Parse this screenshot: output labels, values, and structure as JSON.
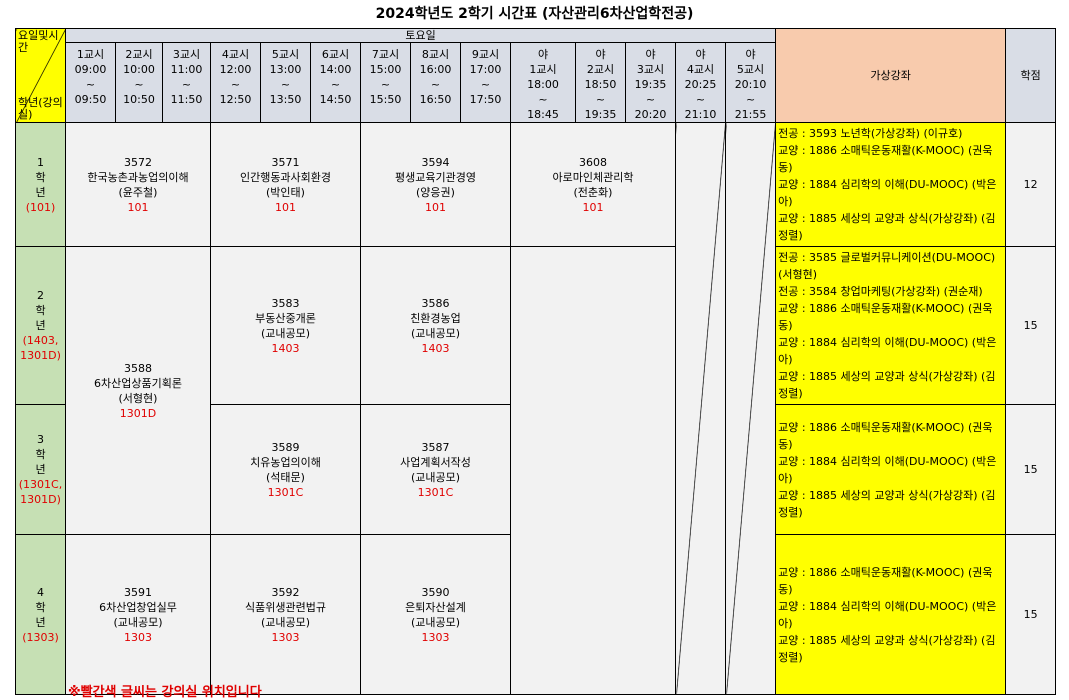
{
  "title": "2024학년도 2학기 시간표 (자산관리6차산업학전공)",
  "header": {
    "corner_top": "요일및시간",
    "corner_bottom": "학년(강의실)",
    "day": "토요일",
    "virtual": "가상강좌",
    "credits": "학점",
    "periods": [
      {
        "label": "1교시",
        "start": "09:00",
        "sep": "~",
        "end": "09:50"
      },
      {
        "label": "2교시",
        "start": "10:00",
        "sep": "~",
        "end": "10:50"
      },
      {
        "label": "3교시",
        "start": "11:00",
        "sep": "~",
        "end": "11:50"
      },
      {
        "label": "4교시",
        "start": "12:00",
        "sep": "~",
        "end": "12:50"
      },
      {
        "label": "5교시",
        "start": "13:00",
        "sep": "~",
        "end": "13:50"
      },
      {
        "label": "6교시",
        "start": "14:00",
        "sep": "~",
        "end": "14:50"
      },
      {
        "label": "7교시",
        "start": "15:00",
        "sep": "~",
        "end": "15:50"
      },
      {
        "label": "8교시",
        "start": "16:00",
        "sep": "~",
        "end": "16:50"
      },
      {
        "label": "9교시",
        "start": "17:00",
        "sep": "~",
        "end": "17:50"
      },
      {
        "prefix": "야",
        "label": "1교시",
        "start": "18:00",
        "sep": "~",
        "end": "18:45"
      },
      {
        "prefix": "야",
        "label": "2교시",
        "start": "18:50",
        "sep": "~",
        "end": "19:35"
      },
      {
        "prefix": "야",
        "label": "3교시",
        "start": "19:35",
        "sep": "~",
        "end": "20:20"
      },
      {
        "prefix": "야",
        "label": "4교시",
        "start": "20:25",
        "sep": "~",
        "end": "21:10"
      },
      {
        "prefix": "야",
        "label": "5교시",
        "start": "20:10",
        "sep": "~",
        "end": "21:55"
      }
    ]
  },
  "rows": [
    {
      "grade": [
        "1",
        "학",
        "년"
      ],
      "room": [
        "(101)"
      ],
      "courses": [
        {
          "code": "3572",
          "name": "한국농촌과농업의이해",
          "professor": "(윤주철)",
          "room": "101"
        },
        {
          "code": "3571",
          "name": "인간행동과사회환경",
          "professor": "(박인태)",
          "room": "101"
        },
        {
          "code": "3594",
          "name": "평생교육기관경영",
          "professor": "(양응권)",
          "room": "101"
        },
        {
          "code": "3608",
          "name": "아로마인체관리학",
          "professor": "(전춘화)",
          "room": "101"
        }
      ],
      "virtual": [
        "전공 : 3593 노년학(가상강좌) (이규호)",
        "교양 : 1886 소매틱운동재활(K-MOOC) (권욱동)",
        "교양 : 1884 심리학의 이해(DU-MOOC) (박은아)",
        "교양 : 1885 세상의 교양과 상식(가상강좌) (김정렬)"
      ],
      "credits": "12"
    },
    {
      "grade": [
        "2",
        "학",
        "년"
      ],
      "room": [
        "(1403,",
        "1301D)"
      ],
      "courses": [
        {
          "code": "3588",
          "name": "6차산업상품기획론",
          "professor": "(서형현)",
          "room": "1301D"
        },
        {
          "code": "3583",
          "name": "부동산중개론",
          "professor": "(교내공모)",
          "room": "1403"
        },
        {
          "code": "3586",
          "name": "친환경농업",
          "professor": "(교내공모)",
          "room": "1403"
        }
      ],
      "virtual": [
        "전공 : 3585 글로벌커뮤니케이션(DU-MOOC)(서형현)",
        "전공 : 3584 창업마케팅(가상강좌) (권순재)",
        "교양 : 1886 소매틱운동재활(K-MOOC) (권욱동)",
        "교양 : 1884 심리학의 이해(DU-MOOC) (박은아)",
        "교양 : 1885 세상의 교양과 상식(가상강좌) (김정렬)"
      ],
      "credits": "15"
    },
    {
      "grade": [
        "3",
        "학",
        "년"
      ],
      "room": [
        "(1301C,",
        "1301D)"
      ],
      "courses": [
        {
          "code": "3589",
          "name": "치유농업의이해",
          "professor": "(석태문)",
          "room": "1301C"
        },
        {
          "code": "3587",
          "name": "사업계획서작성",
          "professor": "(교내공모)",
          "room": "1301C"
        }
      ],
      "virtual": [
        "교양 : 1886 소매틱운동재활(K-MOOC) (권욱동)",
        "교양 : 1884 심리학의 이해(DU-MOOC) (박은아)",
        "교양 : 1885 세상의 교양과 상식(가상강좌) (김정렬)"
      ],
      "credits": "15"
    },
    {
      "grade": [
        "4",
        "학",
        "년"
      ],
      "room": [
        "(1303)"
      ],
      "courses": [
        {
          "code": "3591",
          "name": "6차산업창업실무",
          "professor": "(교내공모)",
          "room": "1303"
        },
        {
          "code": "3592",
          "name": "식품위생관련법규",
          "professor": "(교내공모)",
          "room": "1303"
        },
        {
          "code": "3590",
          "name": "은퇴자산설계",
          "professor": "(교내공모)",
          "room": "1303"
        }
      ],
      "virtual": [
        "교양 : 1886 소매틱운동재활(K-MOOC) (권욱동)",
        "교양 : 1884 심리학의 이해(DU-MOOC) (박은아)",
        "교양 : 1885 세상의 교양과 상식(가상강좌) (김정렬)"
      ],
      "credits": "15"
    }
  ],
  "note": "※빨간색 글씨는 강의실 위치입니다"
}
